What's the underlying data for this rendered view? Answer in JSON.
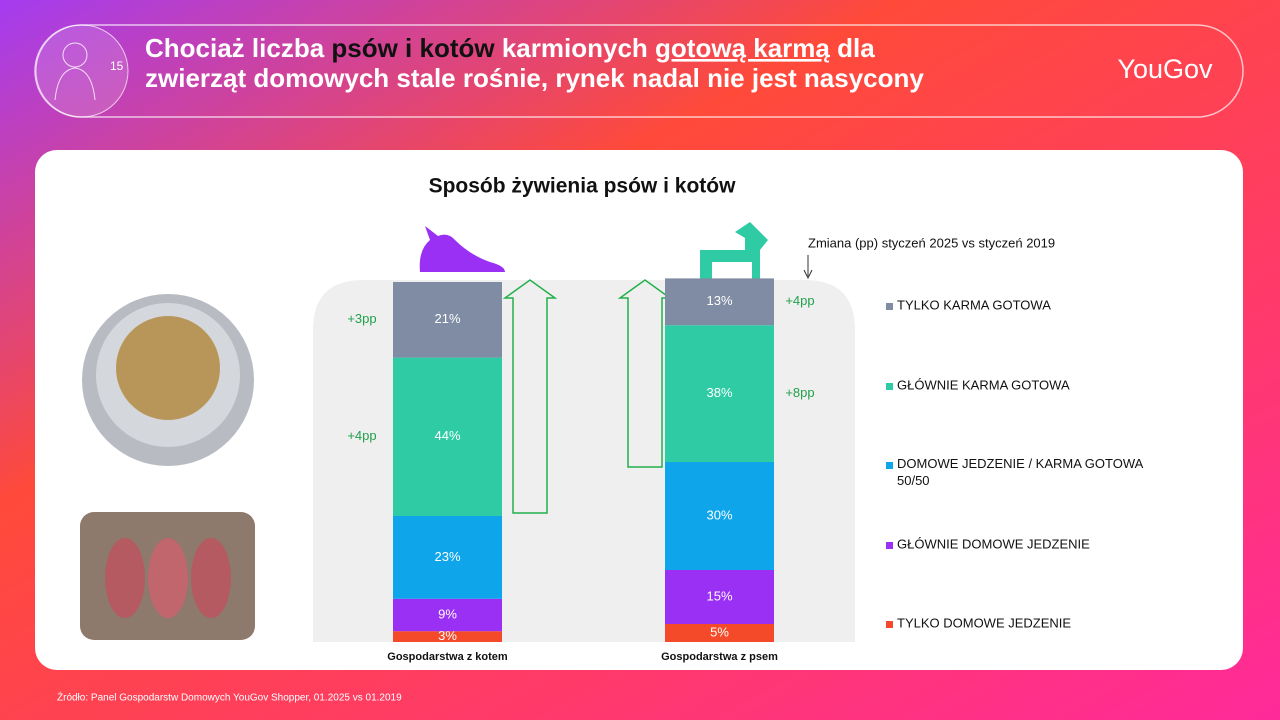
{
  "header": {
    "title_parts": [
      "Chociaż liczba ",
      "psów i kotów",
      " karmionych ",
      "gotową karmą",
      " dla",
      "zwierząt domowych stale rośnie, rynek nadal nie jest nasycony"
    ],
    "icon_number": "15",
    "brand": "YouGov"
  },
  "chart_data": {
    "type": "stacked_bar",
    "title": "Sposób żywienia psów i kotów",
    "note": "Zmiana (pp) styczeń 2025 vs styczeń 2019",
    "categories": [
      "Gospodarstwa z kotem",
      "Gospodarstwa z psem"
    ],
    "ylim": [
      0,
      100
    ],
    "series": [
      {
        "name": "TYLKO KARMA GOTOWA",
        "color": "#7f8ca3",
        "values": [
          21,
          13
        ],
        "value_labels": [
          "21%",
          "13%"
        ],
        "changes": [
          "+3pp",
          "+4pp"
        ]
      },
      {
        "name": "GŁÓWNIE KARMA GOTOWA",
        "color": "#2ecba5",
        "values": [
          44,
          38
        ],
        "value_labels": [
          "44%",
          "38%"
        ],
        "changes": [
          "+4pp",
          "+8pp"
        ]
      },
      {
        "name": "DOMOWE JEDZENIE / KARMA GOTOWA 50/50",
        "color": "#0ea5ea",
        "values": [
          23,
          30
        ],
        "value_labels": [
          "23%",
          "30%"
        ]
      },
      {
        "name": "GŁÓWNIE DOMOWE JEDZENIE",
        "color": "#9b30f5",
        "values": [
          9,
          15
        ],
        "value_labels": [
          "9%",
          "15%"
        ]
      },
      {
        "name": "TYLKO DOMOWE JEDZENIE",
        "color": "#f44a2a",
        "values": [
          3,
          5
        ],
        "value_labels": [
          "3%",
          "5%"
        ]
      }
    ]
  },
  "source": "Źródło: Panel Gospodarstw Domowych YouGov Shopper, 01.2025 vs 01.2019"
}
